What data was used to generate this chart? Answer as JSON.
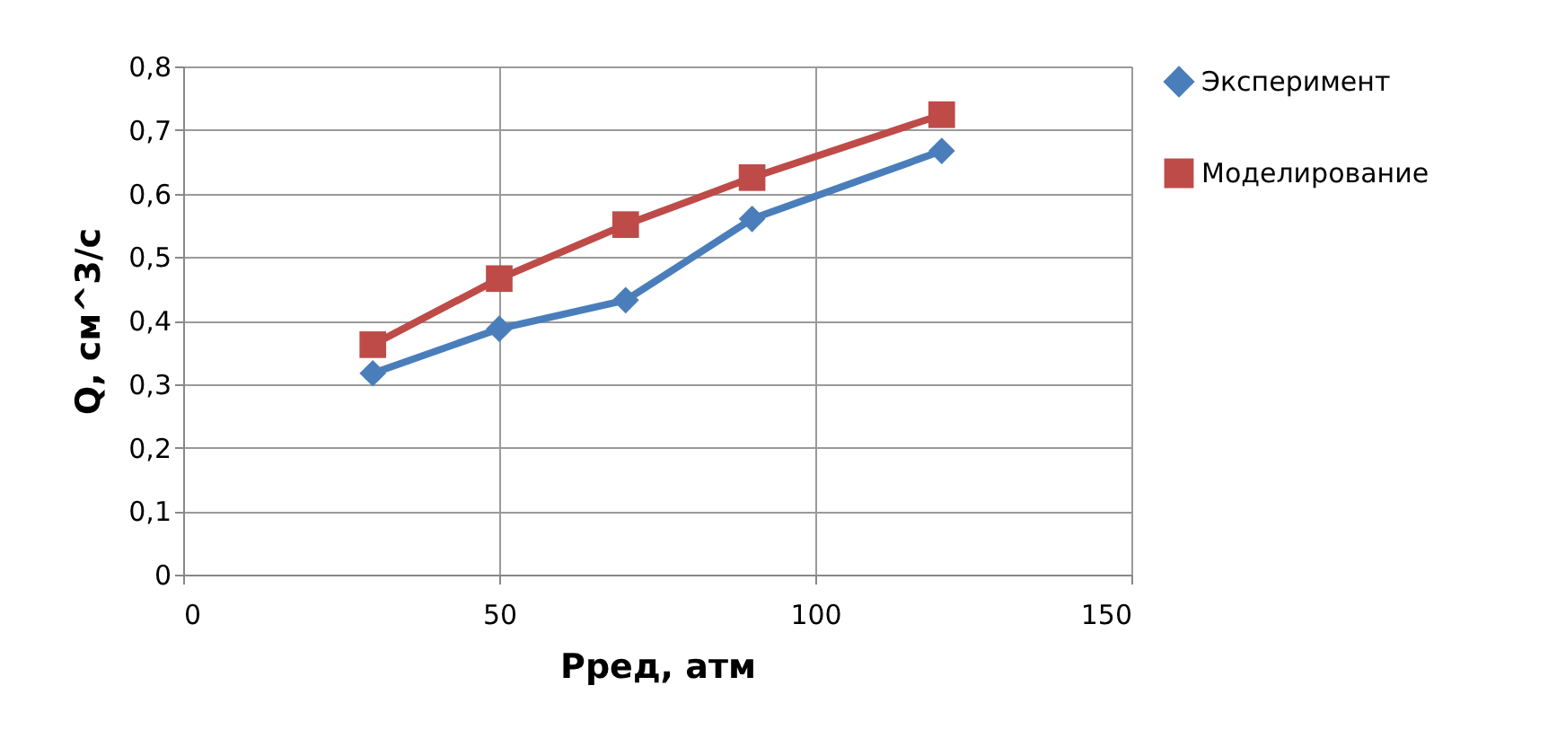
{
  "chart_data": {
    "type": "line",
    "xlabel": "Рред, атм",
    "ylabel": "Q, см^3/с",
    "x": [
      30,
      50,
      70,
      90,
      120
    ],
    "series": [
      {
        "name": "Эксперимент",
        "color": "#4a7ebb",
        "marker": "diamond",
        "values": [
          0.317,
          0.387,
          0.432,
          0.56,
          0.667
        ]
      },
      {
        "name": "Моделирование",
        "color": "#be4b48",
        "marker": "square",
        "values": [
          0.362,
          0.466,
          0.551,
          0.625,
          0.724
        ]
      }
    ],
    "xlim": [
      0,
      150
    ],
    "xticks": [
      0,
      50,
      100,
      150
    ],
    "ylim": [
      0,
      0.8
    ],
    "yticks": [
      {
        "value": 0,
        "label": "0"
      },
      {
        "value": 0.1,
        "label": "0,1"
      },
      {
        "value": 0.2,
        "label": "0,2"
      },
      {
        "value": 0.3,
        "label": "0,3"
      },
      {
        "value": 0.4,
        "label": "0,4"
      },
      {
        "value": 0.5,
        "label": "0,5"
      },
      {
        "value": 0.6,
        "label": "0,6"
      },
      {
        "value": 0.7,
        "label": "0,7"
      },
      {
        "value": 0.8,
        "label": "0,8"
      }
    ],
    "grid": true,
    "legend": "right",
    "line_style": "solid"
  }
}
